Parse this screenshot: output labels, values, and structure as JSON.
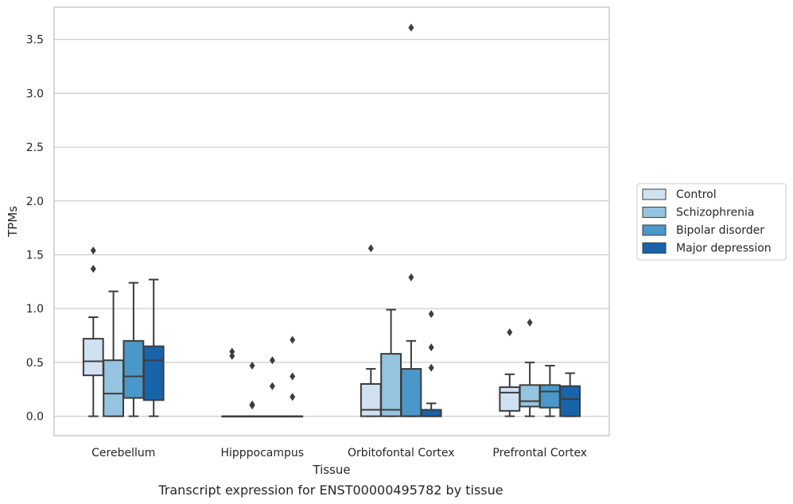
{
  "chart_data": {
    "type": "box",
    "title": "Transcript expression for ENST00000495782 by tissue",
    "xlabel": "Tissue",
    "ylabel": "TPMs",
    "ylim": [
      -0.18,
      3.8
    ],
    "yticks": [
      0.0,
      0.5,
      1.0,
      1.5,
      2.0,
      2.5,
      3.0,
      3.5
    ],
    "ytick_labels": [
      "0.0",
      "0.5",
      "1.0",
      "1.5",
      "2.0",
      "2.5",
      "3.0",
      "3.5"
    ],
    "grid": "horizontal",
    "legend_position": "right",
    "categories": [
      "Cerebellum",
      "Hipppocampus",
      "Orbitofontal Cortex",
      "Prefrontal Cortex"
    ],
    "series": [
      {
        "name": "Control",
        "color": "#d0e1f2",
        "boxes": [
          {
            "whisker_low": 0.0,
            "q1": 0.38,
            "median": 0.51,
            "q3": 0.72,
            "whisker_high": 0.92,
            "outliers": [
              1.37,
              1.54
            ]
          },
          {
            "whisker_low": 0.0,
            "q1": 0.0,
            "median": 0.0,
            "q3": 0.0,
            "whisker_high": 0.0,
            "outliers": [
              0.56,
              0.6
            ]
          },
          {
            "whisker_low": 0.0,
            "q1": 0.0,
            "median": 0.06,
            "q3": 0.3,
            "whisker_high": 0.44,
            "outliers": [
              1.56
            ]
          },
          {
            "whisker_low": 0.0,
            "q1": 0.05,
            "median": 0.22,
            "q3": 0.27,
            "whisker_high": 0.39,
            "outliers": [
              0.78
            ]
          }
        ]
      },
      {
        "name": "Schizophrenia",
        "color": "#94c4df",
        "boxes": [
          {
            "whisker_low": 0.0,
            "q1": 0.0,
            "median": 0.21,
            "q3": 0.52,
            "whisker_high": 1.16,
            "outliers": []
          },
          {
            "whisker_low": 0.0,
            "q1": 0.0,
            "median": 0.0,
            "q3": 0.0,
            "whisker_high": 0.0,
            "outliers": [
              0.47,
              0.1,
              0.11
            ]
          },
          {
            "whisker_low": 0.0,
            "q1": 0.0,
            "median": 0.06,
            "q3": 0.58,
            "whisker_high": 0.99,
            "outliers": []
          },
          {
            "whisker_low": 0.0,
            "q1": 0.09,
            "median": 0.14,
            "q3": 0.29,
            "whisker_high": 0.5,
            "outliers": [
              0.87
            ]
          }
        ]
      },
      {
        "name": "Bipolar disorder",
        "color": "#4a98c9",
        "boxes": [
          {
            "whisker_low": 0.0,
            "q1": 0.17,
            "median": 0.37,
            "q3": 0.7,
            "whisker_high": 1.24,
            "outliers": []
          },
          {
            "whisker_low": 0.0,
            "q1": 0.0,
            "median": 0.0,
            "q3": 0.0,
            "whisker_high": 0.0,
            "outliers": [
              0.52,
              0.28
            ]
          },
          {
            "whisker_low": 0.0,
            "q1": 0.0,
            "median": 0.0,
            "q3": 0.44,
            "whisker_high": 0.7,
            "outliers": [
              1.29,
              3.61
            ]
          },
          {
            "whisker_low": 0.0,
            "q1": 0.08,
            "median": 0.23,
            "q3": 0.29,
            "whisker_high": 0.47,
            "outliers": []
          }
        ]
      },
      {
        "name": "Major depression",
        "color": "#1764ab",
        "boxes": [
          {
            "whisker_low": 0.0,
            "q1": 0.15,
            "median": 0.52,
            "q3": 0.65,
            "whisker_high": 1.27,
            "outliers": []
          },
          {
            "whisker_low": 0.0,
            "q1": 0.0,
            "median": 0.0,
            "q3": 0.0,
            "whisker_high": 0.0,
            "outliers": [
              0.71,
              0.37,
              0.18
            ]
          },
          {
            "whisker_low": 0.0,
            "q1": 0.0,
            "median": 0.0,
            "q3": 0.06,
            "whisker_high": 0.12,
            "outliers": [
              0.95,
              0.64,
              0.45
            ]
          },
          {
            "whisker_low": 0.0,
            "q1": 0.0,
            "median": 0.16,
            "q3": 0.28,
            "whisker_high": 0.4,
            "outliers": []
          }
        ]
      }
    ]
  }
}
